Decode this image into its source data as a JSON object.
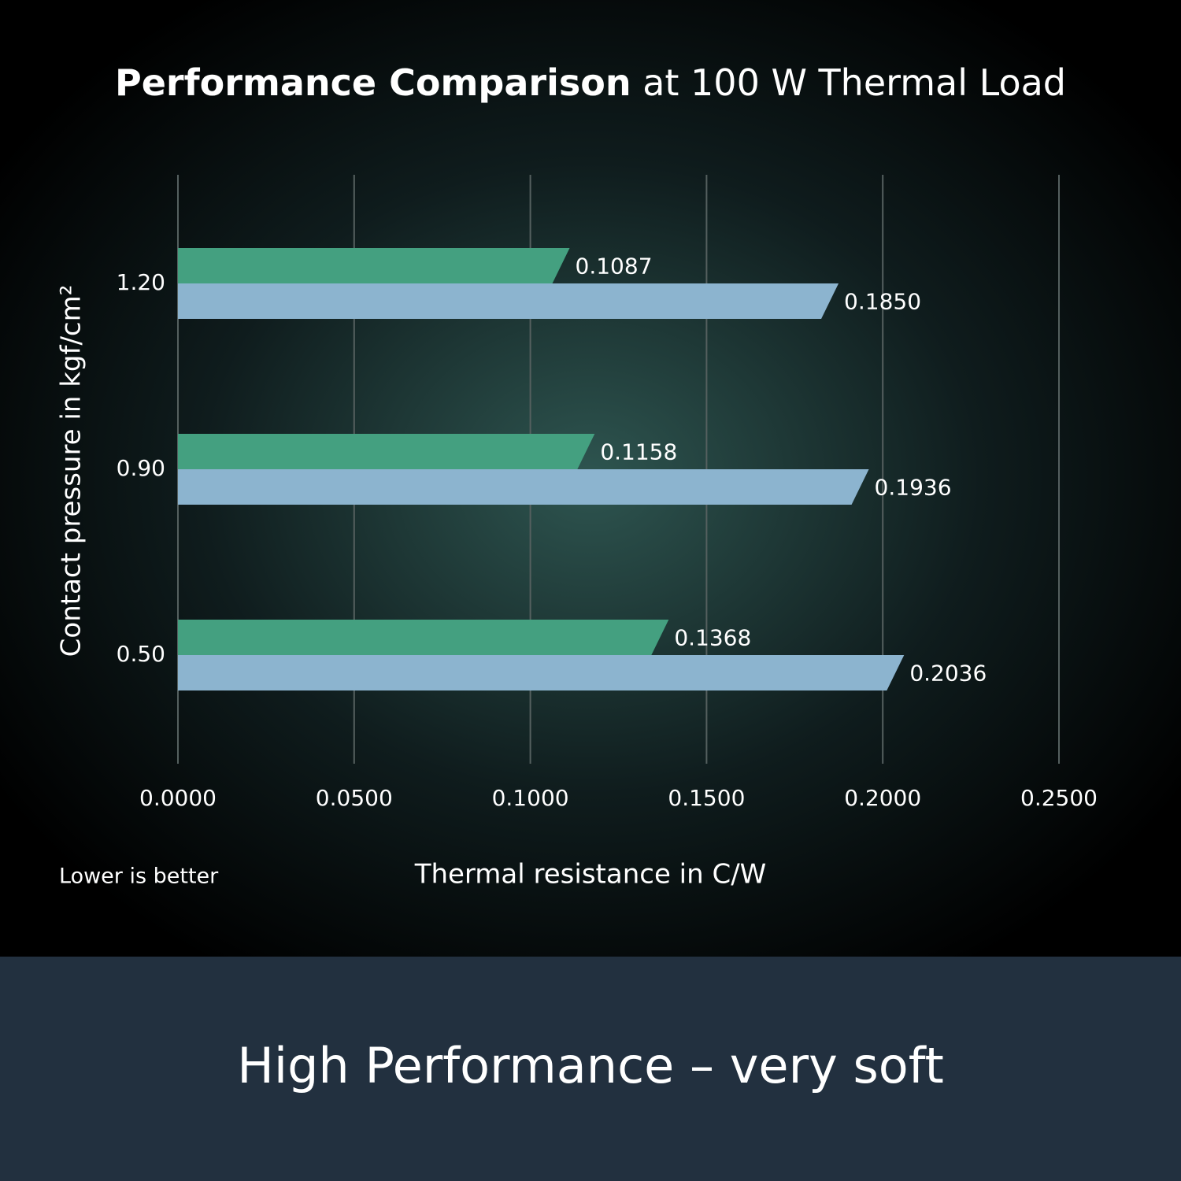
{
  "chart_data": {
    "type": "hbar",
    "title": [
      "Performance Comparison",
      "at 100 W Thermal Load"
    ],
    "categories": [
      "1.20",
      "0.90",
      "0.50"
    ],
    "series": [
      {
        "color": "#44a080",
        "values": [
          0.1087,
          0.1158,
          0.1368
        ]
      },
      {
        "color": "#8cb4cf",
        "values": [
          0.185,
          0.1936,
          0.2036
        ],
        "value_labels": [
          "0.1850",
          "0.1936",
          "0.2036"
        ]
      }
    ],
    "xlim": [
      0,
      0.25
    ],
    "xticks": [
      {
        "value": 0,
        "label": "0.0000"
      },
      {
        "value": 0.05,
        "label": "0.0500"
      },
      {
        "value": 0.1,
        "label": "0.1000"
      },
      {
        "value": 0.15,
        "label": "0.1500"
      },
      {
        "value": 0.2,
        "label": "0.2000"
      },
      {
        "value": 0.25,
        "label": "0.2500"
      }
    ],
    "grid": true,
    "xlabel": "Thermal resistance in C/W",
    "ylabel": "Contact pressure in kgf/cm²",
    "annotation": "Lower is better",
    "footer": "High Performance – very soft"
  }
}
